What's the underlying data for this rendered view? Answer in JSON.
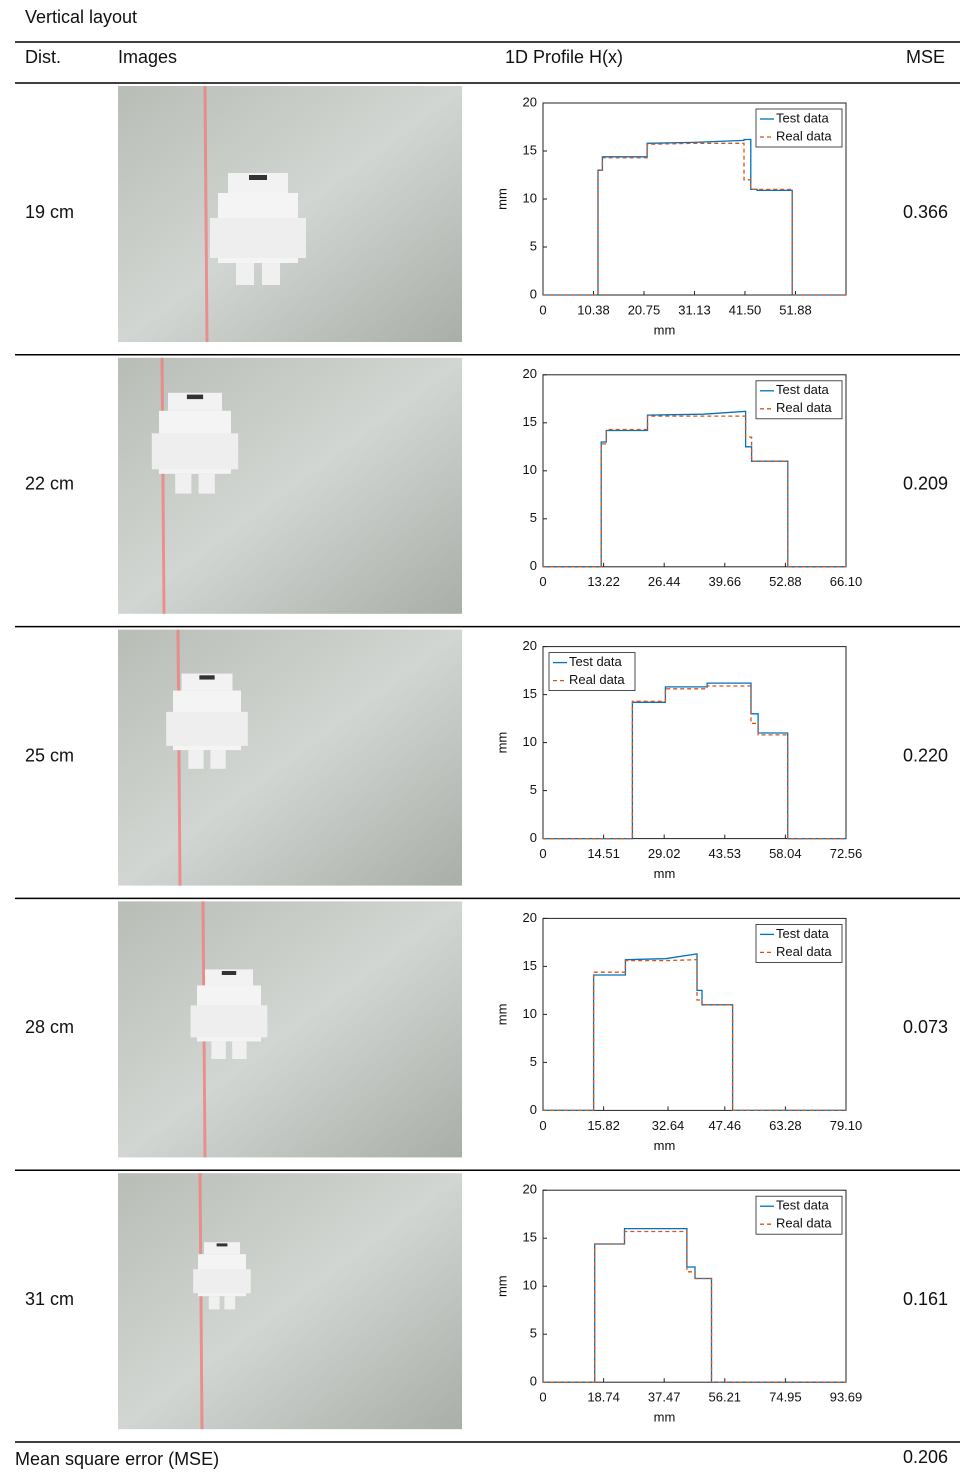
{
  "caption": "Vertical layout",
  "table": {
    "header": [
      "Dist.",
      "Images",
      "1D Profile H(x)",
      "MSE"
    ],
    "rows": [
      {
        "dist": "19 cm",
        "mse": "0.366",
        "chart": {
          "type": "line",
          "ylabel": "mm",
          "xlabel": "mm",
          "legend": "upper right",
          "xlim": [
            0,
            62.26
          ],
          "xticks": [
            0,
            10.38,
            20.75,
            31.13,
            {
              "value": 41.5,
              "label": "41.50"
            },
            51.88
          ],
          "ylim": [
            0,
            20
          ],
          "yticks": [
            0,
            5,
            10,
            15,
            20
          ],
          "x": [
            0,
            11.3,
            11.3,
            12.2,
            12.2,
            21.4,
            21.4,
            31,
            41.3,
            41.3,
            42.7,
            42.7,
            44,
            44,
            51.2,
            51.2,
            62.26
          ],
          "series": [
            {
              "name": "Test data",
              "color": "#0072bd",
              "dash": false,
              "values": [
                0,
                0,
                13,
                13,
                14.4,
                14.4,
                15.8,
                15.9,
                16.1,
                16.2,
                16.2,
                11,
                11,
                10.9,
                10.9,
                0,
                0
              ]
            },
            {
              "name": "Real data",
              "color": "#d95319",
              "dash": true,
              "values": [
                0,
                0,
                13,
                13,
                14.3,
                14.3,
                15.7,
                15.8,
                15.8,
                12,
                12,
                11,
                11,
                11,
                11,
                0,
                0
              ]
            }
          ]
        }
      },
      {
        "dist": "22 cm",
        "mse": "0.209",
        "chart": {
          "type": "line",
          "legend": "upper right",
          "xlim": [
            0,
            66.1
          ],
          "xticks": [
            0,
            13.22,
            26.44,
            39.66,
            52.88,
            {
              "value": 66.1,
              "label": "66.10"
            }
          ],
          "ylim": [
            0,
            20
          ],
          "yticks": [
            0,
            5,
            10,
            15,
            20
          ],
          "x": [
            0,
            12.7,
            12.7,
            13.8,
            13.8,
            22.8,
            22.8,
            35,
            44.2,
            44.2,
            45.5,
            45.5,
            53.4,
            53.4,
            66.1
          ],
          "series": [
            {
              "name": "Test data",
              "color": "#0072bd",
              "dash": false,
              "values": [
                0,
                0,
                13,
                13,
                14.2,
                14.2,
                15.8,
                15.9,
                16.2,
                12.5,
                12.5,
                11,
                11,
                0,
                0
              ]
            },
            {
              "name": "Real data",
              "color": "#d95319",
              "dash": true,
              "values": [
                0,
                0,
                12.8,
                12.8,
                14.3,
                14.3,
                15.7,
                15.7,
                15.7,
                13.5,
                13.5,
                11,
                11,
                0,
                0
              ]
            }
          ]
        }
      },
      {
        "dist": "25 cm",
        "mse": "0.220",
        "chart": {
          "type": "line",
          "ylabel": "mm",
          "xlabel": "mm",
          "legend": "upper left",
          "xlim": [
            0,
            72.56
          ],
          "xticks": [
            0,
            14.51,
            29.02,
            43.53,
            58.04,
            72.56
          ],
          "ylim": [
            0,
            20
          ],
          "yticks": [
            0,
            5,
            10,
            15,
            20
          ],
          "x": [
            0,
            21.4,
            21.4,
            29.3,
            29.3,
            39.3,
            39.3,
            49.8,
            49.8,
            51.5,
            51.5,
            58.6,
            58.6,
            72.56
          ],
          "series": [
            {
              "name": "Test data",
              "color": "#0072bd",
              "dash": false,
              "values": [
                0,
                0,
                14.2,
                14.2,
                15.8,
                15.8,
                16.2,
                16.2,
                13,
                13,
                11,
                11,
                0,
                0
              ]
            },
            {
              "name": "Real data",
              "color": "#d95319",
              "dash": true,
              "values": [
                0,
                0,
                14.3,
                14.3,
                15.6,
                15.6,
                15.9,
                15.9,
                12,
                12,
                10.8,
                10.8,
                0,
                0
              ]
            }
          ]
        }
      },
      {
        "dist": "28 cm",
        "mse": "0.073",
        "chart": {
          "type": "line",
          "ylabel": "mm",
          "xlabel": "mm",
          "legend": "upper right",
          "xlim": [
            0,
            79.1
          ],
          "xticks": [
            0,
            15.82,
            32.64,
            47.46,
            63.28,
            {
              "value": 79.1,
              "label": "79.10"
            }
          ],
          "ylim": [
            0,
            20
          ],
          "yticks": [
            0,
            5,
            10,
            15,
            20
          ],
          "x": [
            0,
            13.2,
            13.2,
            21.5,
            21.5,
            32,
            40.2,
            40.2,
            41.5,
            41.5,
            49.5,
            49.5,
            79.1
          ],
          "series": [
            {
              "name": "Test data",
              "color": "#0072bd",
              "dash": false,
              "values": [
                0,
                0,
                14.1,
                14.1,
                15.7,
                15.8,
                16.3,
                12.5,
                12.5,
                11,
                11,
                0,
                0
              ]
            },
            {
              "name": "Real data",
              "color": "#d95319",
              "dash": true,
              "values": [
                0,
                0,
                14.4,
                14.4,
                15.6,
                15.6,
                15.7,
                11.5,
                11.5,
                11,
                11,
                0,
                0
              ]
            }
          ]
        }
      },
      {
        "dist": "31 cm",
        "mse": "0.161",
        "chart": {
          "type": "line",
          "ylabel": "mm",
          "xlabel": "mm",
          "legend": "upper right",
          "xlim": [
            0,
            93.69
          ],
          "xticks": [
            0,
            18.74,
            37.47,
            56.21,
            74.95,
            93.69
          ],
          "ylim": [
            0,
            20
          ],
          "yticks": [
            0,
            5,
            10,
            15,
            20
          ],
          "x": [
            0,
            16,
            16,
            25.2,
            25.2,
            44.5,
            44.5,
            47,
            47,
            52.1,
            52.1,
            93.69
          ],
          "series": [
            {
              "name": "Test data",
              "color": "#0072bd",
              "dash": false,
              "values": [
                0,
                0,
                14.4,
                14.4,
                16,
                16,
                12,
                12,
                10.8,
                10.8,
                0,
                0
              ]
            },
            {
              "name": "Real data",
              "color": "#d95319",
              "dash": true,
              "values": [
                0,
                0,
                14.4,
                14.4,
                15.7,
                15.7,
                11.5,
                11.5,
                10.8,
                10.8,
                0,
                0
              ]
            }
          ]
        }
      }
    ],
    "footer": {
      "label": "Mean square error (MSE)",
      "value": "0.206"
    }
  }
}
